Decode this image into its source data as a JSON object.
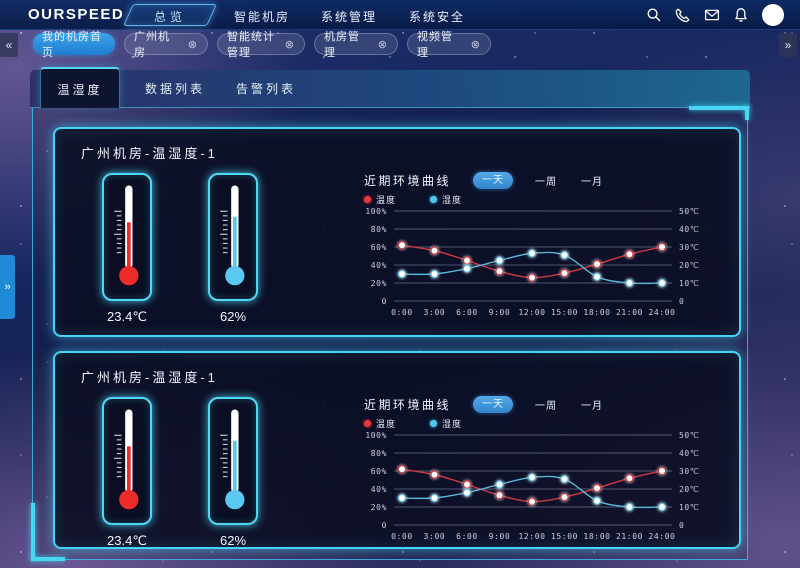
{
  "topbar": {
    "logo": "OURSPEED",
    "nav": [
      {
        "label": "总览",
        "active": true
      },
      {
        "label": "智能机房",
        "active": false
      },
      {
        "label": "系统管理",
        "active": false
      },
      {
        "label": "系统安全",
        "active": false
      }
    ],
    "icons": [
      {
        "name": "search-icon"
      },
      {
        "name": "phone-icon"
      },
      {
        "name": "mail-icon"
      },
      {
        "name": "bell-icon"
      },
      {
        "name": "avatar"
      }
    ]
  },
  "tabstrip": {
    "collapse_left": "«",
    "collapse_right": "»",
    "tabs": [
      {
        "label": "我的机房首页",
        "active": true,
        "closable": false
      },
      {
        "label": "广州机房",
        "active": false,
        "closable": true
      },
      {
        "label": "智能统计管理",
        "active": false,
        "closable": true
      },
      {
        "label": "机房管理",
        "active": false,
        "closable": true
      },
      {
        "label": "视频管理",
        "active": false,
        "closable": true
      }
    ],
    "close_glyph": "⊗"
  },
  "sidebar": {
    "handle": "»"
  },
  "content_tabs": [
    {
      "label": "温湿度",
      "active": true
    },
    {
      "label": "数据列表",
      "active": false
    },
    {
      "label": "告警列表",
      "active": false
    }
  ],
  "panels": [
    {
      "title": "广州机房-温湿度-1",
      "temperature": "23.4℃",
      "humidity": "62%"
    },
    {
      "title": "广州机房-温湿度-1",
      "temperature": "23.4℃",
      "humidity": "62%"
    }
  ],
  "chart": {
    "title": "近期环境曲线",
    "range_buttons": [
      {
        "label": "一天",
        "active": true
      },
      {
        "label": "一周",
        "active": false
      },
      {
        "label": "一月",
        "active": false
      }
    ],
    "legend": [
      {
        "label": "温度",
        "color": "#e8383d"
      },
      {
        "label": "湿度",
        "color": "#53c6f0"
      }
    ]
  },
  "colors": {
    "accent_cyan": "#45d4f2",
    "active_blue": "#2f8fd9",
    "temperature_red": "#d64541",
    "humidity_blue": "#58b7d8"
  },
  "chart_data": {
    "type": "line",
    "title": "近期环境曲线",
    "x": [
      "0:00",
      "3:00",
      "6:00",
      "9:00",
      "12:00",
      "15:00",
      "18:00",
      "21:00",
      "24:00"
    ],
    "series": [
      {
        "name": "温度",
        "axis": "right",
        "unit": "℃",
        "color": "#d0393f",
        "values": [
          31,
          28,
          22.5,
          16.5,
          13,
          15.5,
          20.5,
          26,
          30
        ]
      },
      {
        "name": "湿度",
        "axis": "left",
        "unit": "%",
        "color": "#58b7d8",
        "values": [
          30,
          30,
          36,
          45,
          53,
          51,
          27,
          20,
          20
        ]
      }
    ],
    "left_axis": {
      "ticks": [
        "100%",
        "80%",
        "60%",
        "40%",
        "20%",
        "0"
      ],
      "min": 0,
      "max": 100
    },
    "right_axis": {
      "ticks": [
        "50℃",
        "40℃",
        "30℃",
        "20℃",
        "10℃",
        "0"
      ],
      "min": 0,
      "max": 50
    },
    "grid": true,
    "legend_position": "top-left"
  }
}
